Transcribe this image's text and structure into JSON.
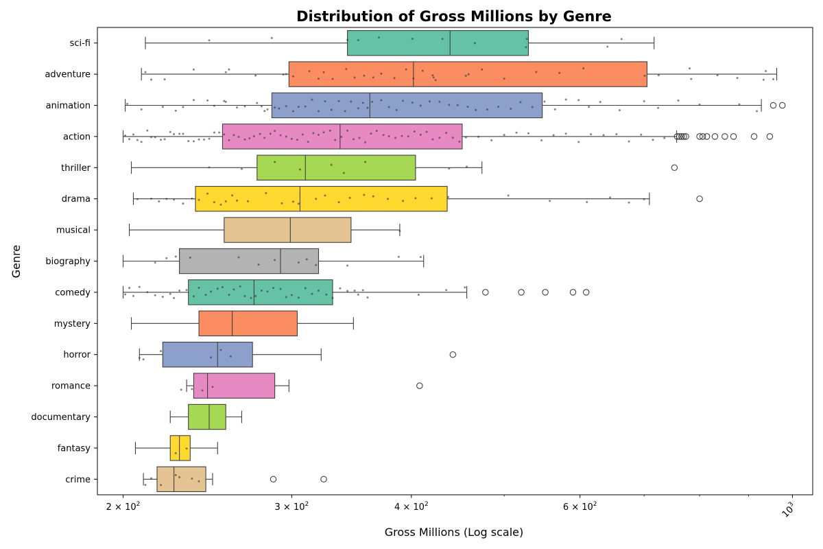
{
  "chart_data": {
    "type": "box",
    "title": "Distribution of Gross Millions by Genre",
    "xlabel": "Gross Millions (Log scale)",
    "ylabel": "Genre",
    "xscale": "log",
    "xlim": [
      188,
      1050
    ],
    "xticks": [
      {
        "value": 200,
        "base": "2 × 10",
        "exp": "2"
      },
      {
        "value": 300,
        "base": "3 × 10",
        "exp": "2"
      },
      {
        "value": 400,
        "base": "4 × 10",
        "exp": "2"
      },
      {
        "value": 600,
        "base": "6 × 10",
        "exp": "2"
      },
      {
        "value": 1000,
        "base": "10",
        "exp": "3"
      }
    ],
    "colors": [
      "#66c2a5",
      "#fc8d62",
      "#8da0cb",
      "#e78ac3",
      "#a6d854",
      "#ffd92f",
      "#e5c494",
      "#b3b3b3"
    ],
    "grid": false,
    "series": [
      {
        "genre": "sci-fi",
        "whisker_low": 211,
        "q1": 343,
        "median": 439,
        "q3": 530,
        "whisker_high": 717,
        "outliers": [],
        "points": [
          246,
          286,
          343,
          352,
          370,
          401,
          431,
          466,
          527,
          528,
          641,
          663
        ]
      },
      {
        "genre": "adventure",
        "whisker_low": 209,
        "q1": 298,
        "median": 402,
        "q3": 705,
        "whisker_high": 963,
        "outliers": [],
        "points": [
          211,
          214,
          221,
          237,
          256,
          258,
          275,
          294,
          296,
          301,
          313,
          320,
          324,
          331,
          342,
          349,
          357,
          365,
          372,
          384,
          395,
          402,
          411,
          421,
          422,
          424,
          456,
          459,
          474,
          500,
          540,
          571,
          605,
          701,
          725,
          781,
          784,
          835,
          876,
          933,
          938,
          955
        ]
      },
      {
        "genre": "animation",
        "whisker_low": 201,
        "q1": 286,
        "median": 362,
        "q3": 548,
        "whisker_high": 928,
        "outliers": [
          955,
          976
        ],
        "points": [
          202,
          209,
          220,
          227,
          231,
          237,
          245,
          249,
          255,
          256,
          263,
          268,
          276,
          279,
          281,
          283,
          288,
          291,
          296,
          301,
          305,
          310,
          315,
          320,
          325,
          330,
          336,
          341,
          346,
          352,
          356,
          360,
          364,
          372,
          379,
          386,
          392,
          401,
          409,
          418,
          428,
          438,
          447,
          458,
          467,
          480,
          493,
          508,
          520,
          535,
          551,
          565,
          580,
          598,
          613,
          630,
          660,
          700,
          724,
          760,
          800,
          880,
          918
        ]
      },
      {
        "genre": "action",
        "whisker_low": 200,
        "q1": 254,
        "median": 337,
        "q3": 452,
        "whisker_high": 757,
        "outliers": [
          758,
          762,
          766,
          770,
          774,
          800,
          806,
          814,
          830,
          850,
          868,
          912,
          947
        ],
        "points": [
          201,
          203,
          205,
          207,
          209,
          212,
          214,
          216,
          219,
          221,
          224,
          226,
          229,
          231,
          234,
          237,
          240,
          243,
          246,
          249,
          252,
          255,
          258,
          261,
          264,
          268,
          271,
          274,
          278,
          281,
          285,
          288,
          292,
          296,
          300,
          304,
          308,
          312,
          316,
          320,
          324,
          329,
          333,
          338,
          343,
          348,
          353,
          358,
          363,
          368,
          374,
          379,
          385,
          391,
          397,
          403,
          409,
          415,
          421,
          428,
          435,
          442,
          449,
          456,
          470,
          485,
          500,
          515,
          530,
          547,
          563,
          580,
          598,
          616,
          635,
          655,
          675,
          695,
          715,
          735
        ]
      },
      {
        "genre": "thriller",
        "whisker_low": 204,
        "q1": 276,
        "median": 310,
        "q3": 404,
        "whisker_high": 474,
        "outliers": [
          753
        ],
        "points": [
          246,
          266,
          288,
          306,
          330,
          340,
          358,
          438,
          457
        ]
      },
      {
        "genre": "drama",
        "whisker_low": 205,
        "q1": 238,
        "median": 306,
        "q3": 436,
        "whisker_high": 709,
        "outliers": [
          800
        ],
        "points": [
          207,
          214,
          218,
          222,
          226,
          231,
          236,
          240,
          245,
          249,
          253,
          256,
          260,
          263,
          270,
          282,
          293,
          301,
          305,
          318,
          325,
          336,
          345,
          357,
          365,
          378,
          392,
          404,
          420,
          437,
          505,
          558,
          610,
          645,
          675,
          700
        ]
      },
      {
        "genre": "musical",
        "whisker_low": 203,
        "q1": 255,
        "median": 299,
        "q3": 346,
        "whisker_high": 389,
        "outliers": [],
        "points": [
          389
        ]
      },
      {
        "genre": "biography",
        "whisker_low": 200,
        "q1": 229,
        "median": 292,
        "q3": 320,
        "whisker_high": 412,
        "outliers": [],
        "points": [
          216,
          222,
          227,
          235,
          264,
          277,
          288,
          305,
          311,
          318,
          343,
          388,
          409
        ]
      },
      {
        "genre": "comedy",
        "whisker_low": 200,
        "q1": 234,
        "median": 274,
        "q3": 331,
        "whisker_high": 457,
        "outliers": [
          478,
          521,
          552,
          590,
          609
        ],
        "points": [
          201,
          203,
          205,
          208,
          212,
          216,
          220,
          224,
          226,
          229,
          233,
          237,
          240,
          244,
          247,
          251,
          254,
          258,
          261,
          265,
          268,
          272,
          275,
          279,
          283,
          287,
          292,
          296,
          300,
          305,
          310,
          315,
          320,
          326,
          331,
          337,
          343,
          349,
          352,
          356,
          360,
          407,
          435,
          455
        ]
      },
      {
        "genre": "mystery",
        "whisker_low": 204,
        "q1": 240,
        "median": 260,
        "q3": 304,
        "whisker_high": 348,
        "outliers": [],
        "points": []
      },
      {
        "genre": "horror",
        "whisker_low": 208,
        "q1": 220,
        "median": 251,
        "q3": 273,
        "whisker_high": 322,
        "outliers": [
          442
        ],
        "points": [
          208,
          210,
          219,
          247,
          253,
          259
        ]
      },
      {
        "genre": "romance",
        "whisker_low": 233,
        "q1": 237,
        "median": 245,
        "q3": 288,
        "whisker_high": 298,
        "outliers": [
          408
        ],
        "points": [
          230,
          236,
          242,
          248
        ]
      },
      {
        "genre": "documentary",
        "whisker_low": 224,
        "q1": 234,
        "median": 246,
        "q3": 256,
        "whisker_high": 266,
        "outliers": [],
        "points": []
      },
      {
        "genre": "fantasy",
        "whisker_low": 206,
        "q1": 224,
        "median": 229,
        "q3": 235,
        "whisker_high": 251,
        "outliers": [],
        "points": [
          227,
          233
        ]
      },
      {
        "genre": "crime",
        "whisker_low": 210,
        "q1": 217,
        "median": 226,
        "q3": 244,
        "whisker_high": 248,
        "outliers": [
          287,
          324
        ],
        "points": [
          211,
          214,
          219,
          227,
          229,
          236,
          240
        ]
      }
    ]
  }
}
